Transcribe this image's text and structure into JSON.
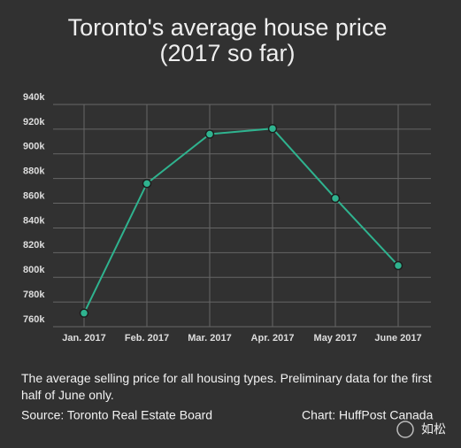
{
  "chart_data": {
    "type": "line",
    "title": "Toronto's average house price",
    "subtitle": "(2017 so far)",
    "categories": [
      "Jan. 2017",
      "Feb. 2017",
      "Mar. 2017",
      "Apr. 2017",
      "May 2017",
      "June 2017"
    ],
    "values": [
      771000,
      876000,
      916000,
      920500,
      864000,
      809500
    ],
    "color": "#2fb38f",
    "ylim": [
      760000,
      940000
    ],
    "yticks": [
      {
        "value": 760000,
        "label": "760k"
      },
      {
        "value": 780000,
        "label": "780k"
      },
      {
        "value": 800000,
        "label": "800k"
      },
      {
        "value": 820000,
        "label": "820k"
      },
      {
        "value": 840000,
        "label": "840k"
      },
      {
        "value": 860000,
        "label": "860k"
      },
      {
        "value": 880000,
        "label": "880k"
      },
      {
        "value": 900000,
        "label": "900k"
      },
      {
        "value": 920000,
        "label": "920k"
      },
      {
        "value": 940000,
        "label": "940k"
      }
    ],
    "grid": true,
    "caption": "The average selling price for all housing types. Preliminary data for the first half of June only.",
    "source": "Source: Toronto Real Estate Board",
    "credit": "Chart: HuffPost Canada",
    "watermark": "如松"
  }
}
